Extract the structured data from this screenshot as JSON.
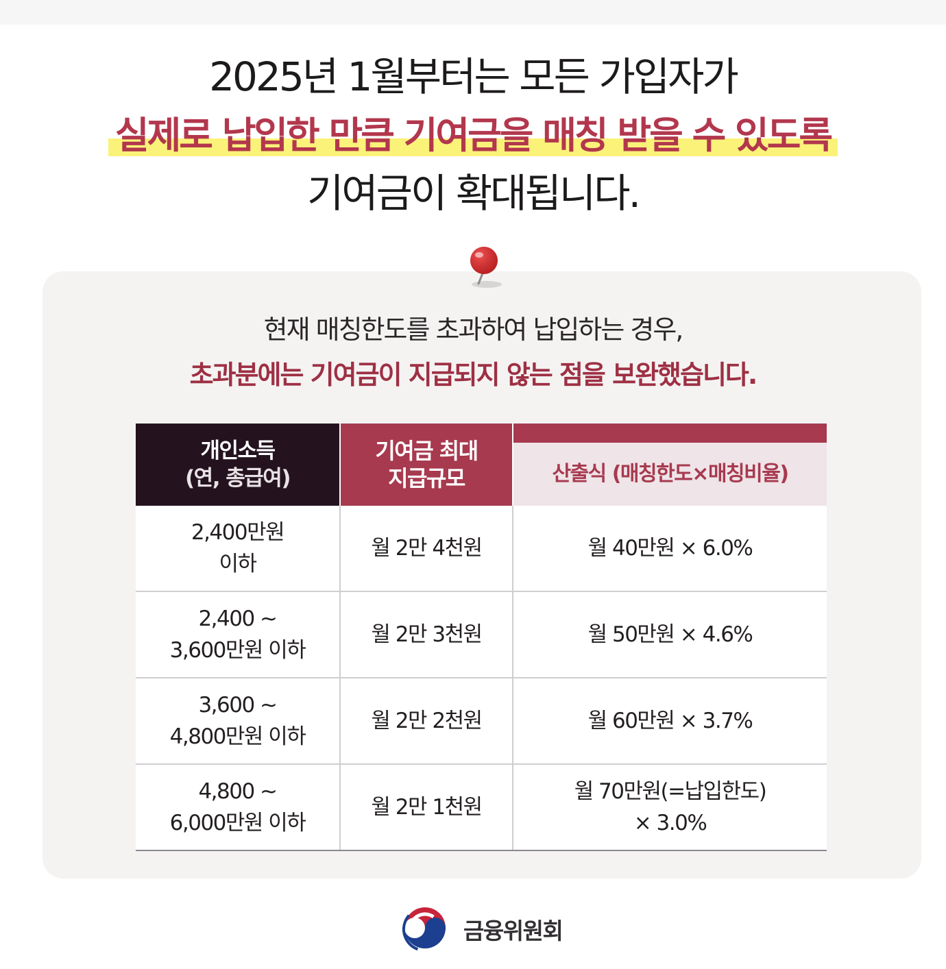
{
  "headline": {
    "line1": "2025년 1월부터는 모든 가입자가",
    "line2": "실제로 납입한 만큼 기여금을 매칭 받을 수 있도록",
    "line3": "기여금이 확대됩니다."
  },
  "intro": {
    "line1": "현재 매칭한도를 초과하여 납입하는 경우,",
    "line2": "초과분에는 기여금이 지급되지 않는 점을 보완했습니다."
  },
  "table": {
    "header": {
      "col1_main": "개인소득",
      "col1_sub": "(연, 총급여)",
      "col2_line1": "기여금 최대",
      "col2_line2": "지급규모",
      "col3_strong": "산출식",
      "col3_rest": " (매칭한도×매칭비율)"
    },
    "rows": [
      {
        "income_1": "2,400만원",
        "income_2": "이하",
        "max": "월 2만 4천원",
        "formula_1": "월 40만원 × 6.0%",
        "formula_2": ""
      },
      {
        "income_1": "2,400 ~",
        "income_2": "3,600만원 이하",
        "max": "월 2만 3천원",
        "formula_1": "월 50만원 × 4.6%",
        "formula_2": ""
      },
      {
        "income_1": "3,600 ~",
        "income_2": "4,800만원 이하",
        "max": "월 2만 2천원",
        "formula_1": "월 60만원 × 3.7%",
        "formula_2": ""
      },
      {
        "income_1": "4,800 ~",
        "income_2": "6,000만원 이하",
        "max": "월 2만 1천원",
        "formula_1": "월 70만원(=납입한도)",
        "formula_2": "× 3.0%"
      }
    ]
  },
  "footer": {
    "org_name": "금융위원회",
    "logo_icon": "taegeuk-logo-icon"
  },
  "colors": {
    "accent": "#b2374d",
    "header_dark": "#24131f",
    "header_red": "#a73a4f",
    "highlight": "#fbf27a"
  }
}
